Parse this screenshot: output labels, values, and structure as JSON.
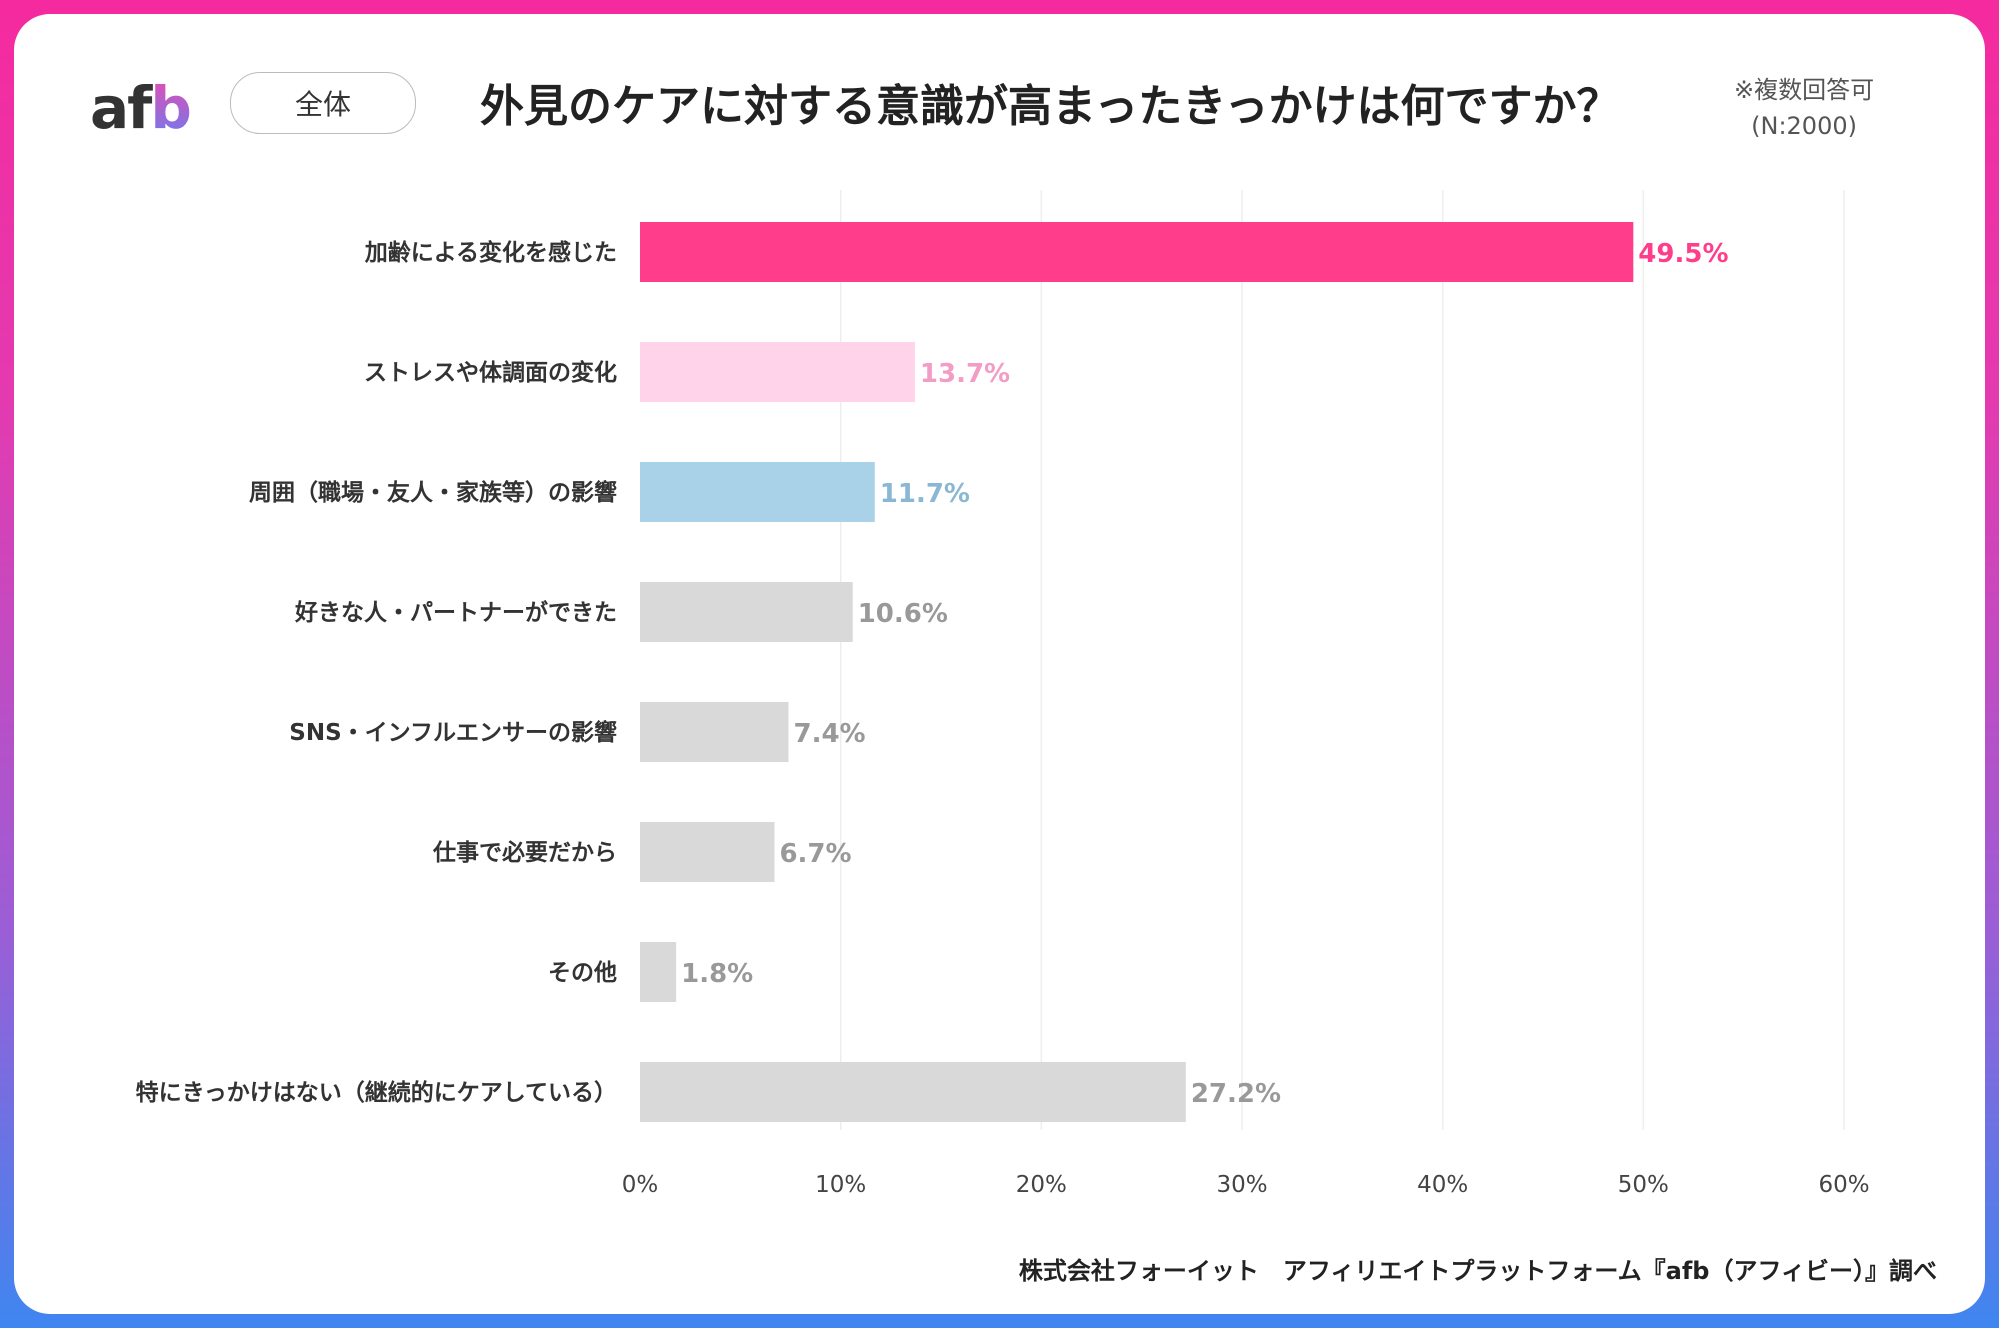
{
  "header": {
    "logo": "afb",
    "segment": "全体",
    "title": "外見のケアに対する意識が高まったきっかけは何ですか？",
    "note_line1": "※複数回答可",
    "note_line2": "(N:2000)"
  },
  "footer": {
    "source": "株式会社フォーイット　アフィリエイトプラットフォーム『afb（アフィビー）』調べ"
  },
  "chart_data": {
    "type": "bar",
    "orientation": "horizontal",
    "categories": [
      "加齢による変化を感じた",
      "ストレスや体調面の変化",
      "周囲（職場・友人・家族等）の影響",
      "好きな人・パートナーができた",
      "SNS・インフルエンサーの影響",
      "仕事で必要だから",
      "その他",
      "特にきっかけはない（継続的にケアしている）"
    ],
    "values": [
      49.5,
      13.7,
      11.7,
      10.6,
      7.4,
      6.7,
      1.8,
      27.2
    ],
    "value_labels": [
      "49.5%",
      "13.7%",
      "11.7%",
      "10.6%",
      "7.4%",
      "6.7%",
      "1.8%",
      "27.2%"
    ],
    "bar_colors": [
      "#ff3d8b",
      "#ffd3ea",
      "#a9d1e8",
      "#d9d9d9",
      "#d9d9d9",
      "#d9d9d9",
      "#d9d9d9",
      "#d9d9d9"
    ],
    "label_colors": [
      "#ff3d8b",
      "#f29cc6",
      "#8ab7d3",
      "#999999",
      "#999999",
      "#999999",
      "#999999",
      "#999999"
    ],
    "xlim": [
      0,
      60
    ],
    "xticks": [
      "0%",
      "10%",
      "20%",
      "30%",
      "40%",
      "50%",
      "60%"
    ],
    "grid": true,
    "xlabel": "",
    "ylabel": ""
  }
}
